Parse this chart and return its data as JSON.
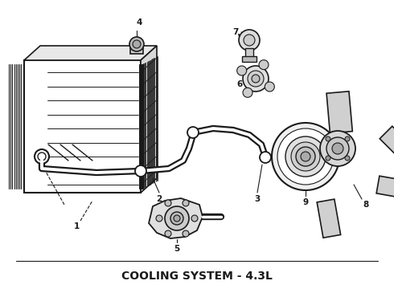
{
  "title": "COOLING SYSTEM - 4.3L",
  "title_fontsize": 10,
  "title_fontweight": "bold",
  "bg_color": "#ffffff",
  "line_color": "#1a1a1a",
  "fig_width": 4.9,
  "fig_height": 3.6,
  "dpi": 100
}
